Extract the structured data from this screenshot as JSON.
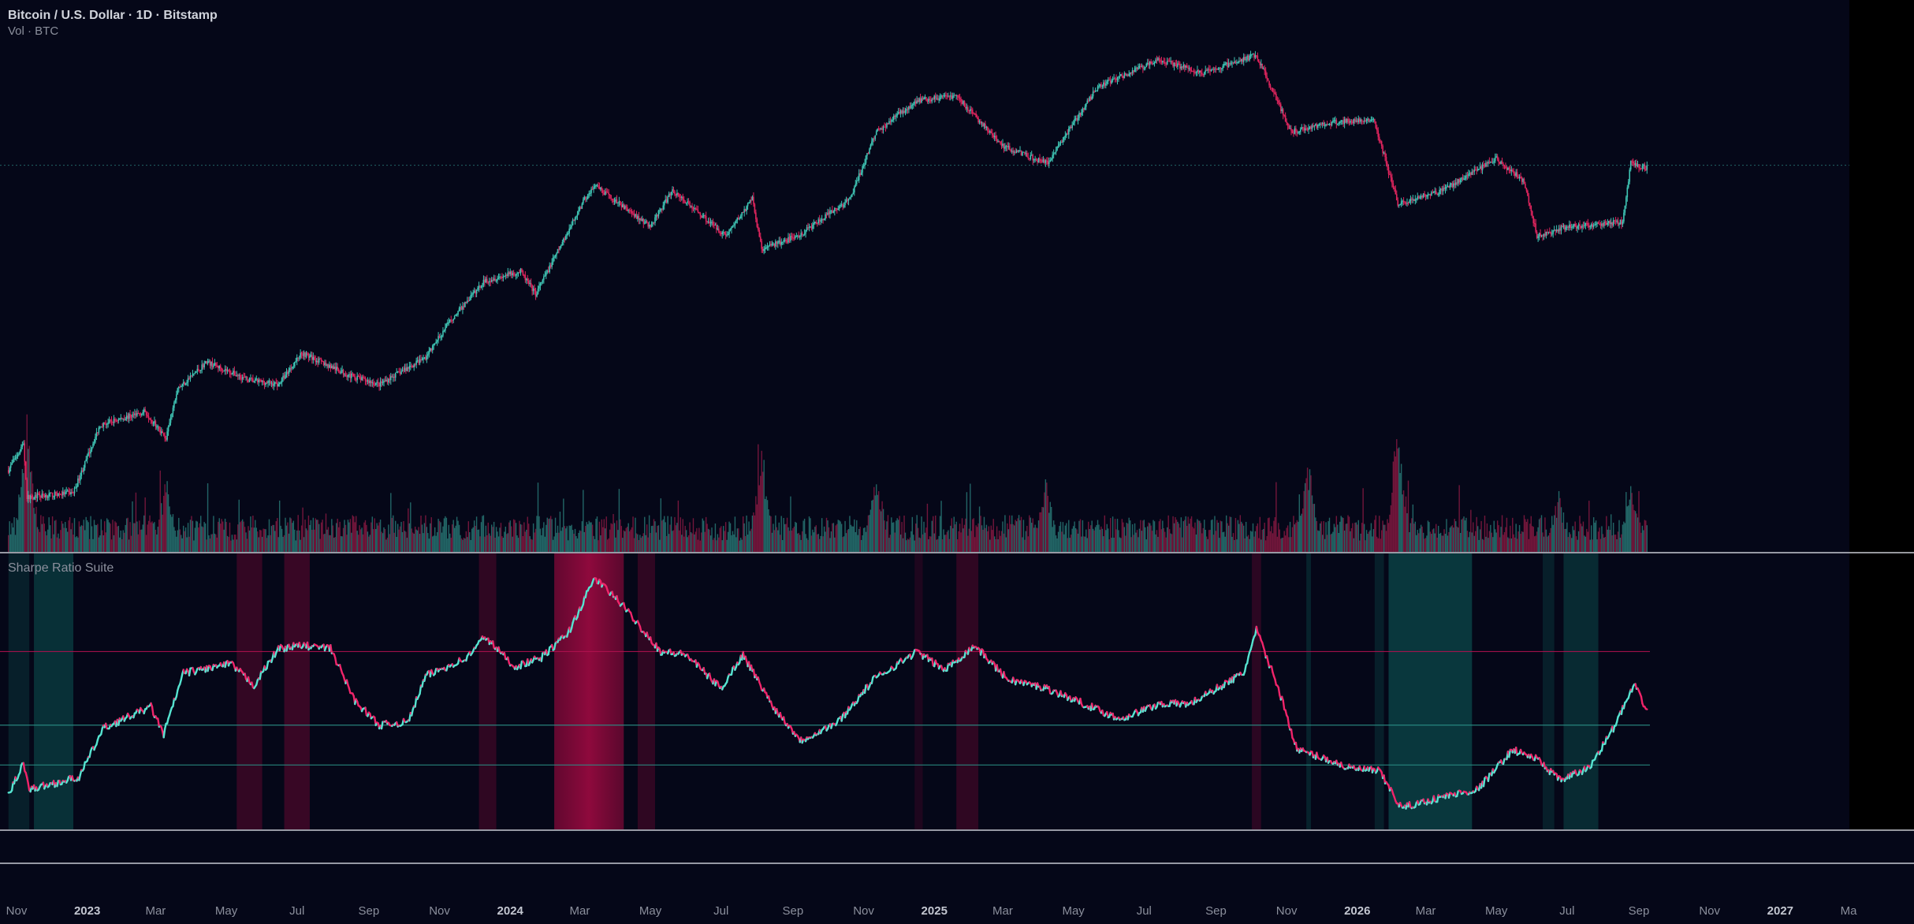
{
  "header": {
    "symbol_title": "Bitcoin / U.S. Dollar · 1D · Bitstamp",
    "volume_label": "Vol · BTC"
  },
  "indicator": {
    "name": "Sharpe Ratio Suite"
  },
  "colors": {
    "background": "#050718",
    "up": "#3fc4b4",
    "down": "#e0255e",
    "sharpe_up": "#56e3d0",
    "sharpe_down": "#f0246a",
    "overbought_zone": "#a0093f",
    "oversold_zone": "#0f6a63",
    "axis_text": "#8b8f9c",
    "axis_text_bold": "#c3c6d0"
  },
  "chart_data": [
    {
      "type": "candlestick",
      "symbol": "BTCUSD",
      "interval": "1D",
      "exchange": "Bitstamp",
      "x_start": "2022-10-25",
      "x_end": "2026-09-08",
      "price_path_keypoints": [
        [
          "2022-10-25",
          0.08
        ],
        [
          "2022-11-07",
          0.14
        ],
        [
          "2022-11-10",
          0.02
        ],
        [
          "2022-12-20",
          0.03
        ],
        [
          "2023-01-12",
          0.18
        ],
        [
          "2023-02-20",
          0.21
        ],
        [
          "2023-03-10",
          0.15
        ],
        [
          "2023-03-20",
          0.26
        ],
        [
          "2023-04-14",
          0.32
        ],
        [
          "2023-05-20",
          0.28
        ],
        [
          "2023-06-15",
          0.27
        ],
        [
          "2023-07-05",
          0.34
        ],
        [
          "2023-08-15",
          0.29
        ],
        [
          "2023-09-10",
          0.27
        ],
        [
          "2023-10-20",
          0.33
        ],
        [
          "2023-11-10",
          0.41
        ],
        [
          "2023-12-10",
          0.5
        ],
        [
          "2024-01-10",
          0.52
        ],
        [
          "2024-01-23",
          0.47
        ],
        [
          "2024-03-05",
          0.68
        ],
        [
          "2024-03-14",
          0.71
        ],
        [
          "2024-05-01",
          0.62
        ],
        [
          "2024-05-20",
          0.7
        ],
        [
          "2024-07-05",
          0.6
        ],
        [
          "2024-07-28",
          0.68
        ],
        [
          "2024-08-05",
          0.57
        ],
        [
          "2024-09-06",
          0.6
        ],
        [
          "2024-10-20",
          0.68
        ],
        [
          "2024-11-12",
          0.83
        ],
        [
          "2024-12-17",
          0.9
        ],
        [
          "2025-01-20",
          0.91
        ],
        [
          "2025-02-28",
          0.8
        ],
        [
          "2025-04-08",
          0.76
        ],
        [
          "2025-05-22",
          0.93
        ],
        [
          "2025-07-14",
          0.99
        ],
        [
          "2025-08-20",
          0.96
        ],
        [
          "2025-10-06",
          1.0
        ],
        [
          "2025-10-20",
          0.92
        ],
        [
          "2025-11-05",
          0.83
        ],
        [
          "2025-12-10",
          0.85
        ],
        [
          "2026-01-15",
          0.86
        ],
        [
          "2026-02-05",
          0.67
        ],
        [
          "2026-03-15",
          0.7
        ],
        [
          "2026-05-01",
          0.77
        ],
        [
          "2026-05-25",
          0.72
        ],
        [
          "2026-06-05",
          0.6
        ],
        [
          "2026-07-01",
          0.62
        ],
        [
          "2026-08-18",
          0.63
        ],
        [
          "2026-08-25",
          0.76
        ],
        [
          "2026-09-08",
          0.75
        ]
      ],
      "volume_spikes": [
        [
          "2022-11-10",
          1.0
        ],
        [
          "2023-03-10",
          0.55
        ],
        [
          "2024-08-05",
          0.8
        ],
        [
          "2024-11-12",
          0.62
        ],
        [
          "2025-04-07",
          0.58
        ],
        [
          "2025-11-20",
          0.7
        ],
        [
          "2026-02-05",
          1.0
        ],
        [
          "2026-06-24",
          0.45
        ],
        [
          "2026-08-25",
          0.5
        ]
      ]
    },
    {
      "type": "line",
      "title": "Sharpe Ratio Suite",
      "x_start": "2022-10-25",
      "x_end": "2026-09-08",
      "thresholds": [
        2.1,
        0.9,
        0.25
      ],
      "ylim": [
        -0.8,
        3.7
      ],
      "series_keypoints": [
        [
          "2022-10-25",
          -0.25
        ],
        [
          "2022-11-07",
          0.3
        ],
        [
          "2022-11-12",
          -0.15
        ],
        [
          "2022-12-25",
          0.05
        ],
        [
          "2023-01-15",
          0.85
        ],
        [
          "2023-02-25",
          1.2
        ],
        [
          "2023-03-08",
          0.75
        ],
        [
          "2023-03-25",
          1.75
        ],
        [
          "2023-05-05",
          1.9
        ],
        [
          "2023-05-25",
          1.55
        ],
        [
          "2023-06-15",
          2.15
        ],
        [
          "2023-07-05",
          2.2
        ],
        [
          "2023-07-30",
          2.15
        ],
        [
          "2023-08-20",
          1.3
        ],
        [
          "2023-09-10",
          0.9
        ],
        [
          "2023-10-05",
          0.95
        ],
        [
          "2023-10-20",
          1.7
        ],
        [
          "2023-11-25",
          2.0
        ],
        [
          "2023-12-10",
          2.35
        ],
        [
          "2024-01-05",
          1.85
        ],
        [
          "2024-01-28",
          2.0
        ],
        [
          "2024-02-20",
          2.4
        ],
        [
          "2024-03-14",
          3.3
        ],
        [
          "2024-04-05",
          2.9
        ],
        [
          "2024-05-10",
          2.1
        ],
        [
          "2024-06-01",
          2.05
        ],
        [
          "2024-07-01",
          1.5
        ],
        [
          "2024-07-20",
          2.05
        ],
        [
          "2024-08-15",
          1.2
        ],
        [
          "2024-09-08",
          0.65
        ],
        [
          "2024-10-10",
          0.95
        ],
        [
          "2024-11-10",
          1.65
        ],
        [
          "2024-12-17",
          2.1
        ],
        [
          "2025-01-10",
          1.8
        ],
        [
          "2025-02-05",
          2.2
        ],
        [
          "2025-03-05",
          1.65
        ],
        [
          "2025-04-08",
          1.5
        ],
        [
          "2025-05-10",
          1.25
        ],
        [
          "2025-06-10",
          1.0
        ],
        [
          "2025-07-15",
          1.25
        ],
        [
          "2025-08-10",
          1.25
        ],
        [
          "2025-09-25",
          1.75
        ],
        [
          "2025-10-06",
          2.45
        ],
        [
          "2025-10-25",
          1.5
        ],
        [
          "2025-11-10",
          0.5
        ],
        [
          "2025-12-05",
          0.35
        ],
        [
          "2025-12-25",
          0.2
        ],
        [
          "2026-01-20",
          0.15
        ],
        [
          "2026-02-08",
          -0.45
        ],
        [
          "2026-03-20",
          -0.25
        ],
        [
          "2026-04-15",
          -0.15
        ],
        [
          "2026-05-15",
          0.5
        ],
        [
          "2026-06-05",
          0.35
        ],
        [
          "2026-06-25",
          0.0
        ],
        [
          "2026-07-20",
          0.2
        ],
        [
          "2026-08-10",
          0.85
        ],
        [
          "2026-08-28",
          1.55
        ],
        [
          "2026-09-08",
          1.15
        ]
      ],
      "overbought_periods": [
        [
          "2023-05-10",
          "2023-06-01",
          0.55
        ],
        [
          "2023-06-20",
          "2023-07-12",
          0.6
        ],
        [
          "2023-12-05",
          "2023-12-20",
          0.5
        ],
        [
          "2024-02-08",
          "2024-04-08",
          1.0
        ],
        [
          "2024-04-20",
          "2024-05-05",
          0.5
        ],
        [
          "2024-12-15",
          "2024-12-22",
          0.3
        ],
        [
          "2025-01-20",
          "2025-02-08",
          0.5
        ],
        [
          "2025-10-02",
          "2025-10-10",
          0.45
        ]
      ],
      "oversold_periods": [
        [
          "2022-10-25",
          "2022-11-12",
          0.45
        ],
        [
          "2022-11-16",
          "2022-12-20",
          0.75
        ],
        [
          "2025-11-18",
          "2025-11-22",
          0.5
        ],
        [
          "2026-01-16",
          "2026-01-24",
          0.45
        ],
        [
          "2026-01-28",
          "2026-04-10",
          0.9
        ],
        [
          "2026-06-10",
          "2026-06-20",
          0.45
        ],
        [
          "2026-06-28",
          "2026-07-28",
          0.65
        ]
      ]
    }
  ],
  "time_axis": {
    "labels": [
      {
        "text": "Nov",
        "date": "2022-11-01",
        "bold": false
      },
      {
        "text": "2023",
        "date": "2023-01-01",
        "bold": true
      },
      {
        "text": "Mar",
        "date": "2023-03-01",
        "bold": false
      },
      {
        "text": "May",
        "date": "2023-05-01",
        "bold": false
      },
      {
        "text": "Jul",
        "date": "2023-07-01",
        "bold": false
      },
      {
        "text": "Sep",
        "date": "2023-09-01",
        "bold": false
      },
      {
        "text": "Nov",
        "date": "2023-11-01",
        "bold": false
      },
      {
        "text": "2024",
        "date": "2024-01-01",
        "bold": true
      },
      {
        "text": "Mar",
        "date": "2024-03-01",
        "bold": false
      },
      {
        "text": "May",
        "date": "2024-05-01",
        "bold": false
      },
      {
        "text": "Jul",
        "date": "2024-07-01",
        "bold": false
      },
      {
        "text": "Sep",
        "date": "2024-09-01",
        "bold": false
      },
      {
        "text": "Nov",
        "date": "2024-11-01",
        "bold": false
      },
      {
        "text": "2025",
        "date": "2025-01-01",
        "bold": true
      },
      {
        "text": "Mar",
        "date": "2025-03-01",
        "bold": false
      },
      {
        "text": "May",
        "date": "2025-05-01",
        "bold": false
      },
      {
        "text": "Jul",
        "date": "2025-07-01",
        "bold": false
      },
      {
        "text": "Sep",
        "date": "2025-09-01",
        "bold": false
      },
      {
        "text": "Nov",
        "date": "2025-11-01",
        "bold": false
      },
      {
        "text": "2026",
        "date": "2026-01-01",
        "bold": true
      },
      {
        "text": "Mar",
        "date": "2026-03-01",
        "bold": false
      },
      {
        "text": "May",
        "date": "2026-05-01",
        "bold": false
      },
      {
        "text": "Jul",
        "date": "2026-07-01",
        "bold": false
      },
      {
        "text": "Sep",
        "date": "2026-09-01",
        "bold": false
      },
      {
        "text": "Nov",
        "date": "2026-11-01",
        "bold": false
      },
      {
        "text": "2027",
        "date": "2027-01-01",
        "bold": true
      },
      {
        "text": "Ma",
        "date": "2027-03-01",
        "bold": false
      }
    ]
  }
}
